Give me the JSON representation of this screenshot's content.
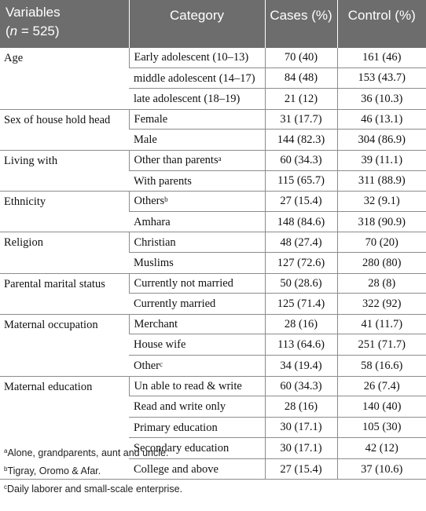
{
  "header": {
    "variables_label": "Variables",
    "n_prefix": "(",
    "n_italic": "n",
    "n_suffix": " = 525)",
    "category": "Category",
    "cases": "Cases (%)",
    "control": "Control (%)"
  },
  "groups": [
    {
      "variable": "Age",
      "rows": [
        {
          "category": "Early adolescent (10–13)",
          "sup": "",
          "cases": "70 (40)",
          "control": "161 (46)"
        },
        {
          "category": "middle adolescent (14–17)",
          "sup": "",
          "cases": "84 (48)",
          "control": "153 (43.7)"
        },
        {
          "category": "late adolescent (18–19)",
          "sup": "",
          "cases": "21 (12)",
          "control": "36 (10.3)"
        }
      ]
    },
    {
      "variable": "Sex of house hold head",
      "rows": [
        {
          "category": "Female",
          "sup": "",
          "cases": "31 (17.7)",
          "control": "46 (13.1)"
        },
        {
          "category": "Male",
          "sup": "",
          "cases": "144 (82.3)",
          "control": "304 (86.9)"
        }
      ]
    },
    {
      "variable": "Living with",
      "rows": [
        {
          "category": "Other than parents",
          "sup": "a",
          "cases": "60 (34.3)",
          "control": "39 (11.1)"
        },
        {
          "category": "With parents",
          "sup": "",
          "cases": "115 (65.7)",
          "control": "311 (88.9)"
        }
      ]
    },
    {
      "variable": "Ethnicity",
      "rows": [
        {
          "category": "Others",
          "sup": "b",
          "cases": "27 (15.4)",
          "control": "32 (9.1)"
        },
        {
          "category": "Amhara",
          "sup": "",
          "cases": "148 (84.6)",
          "control": "318 (90.9)"
        }
      ]
    },
    {
      "variable": "Religion",
      "rows": [
        {
          "category": "Christian",
          "sup": "",
          "cases": "48 (27.4)",
          "control": "70 (20)"
        },
        {
          "category": "Muslims",
          "sup": "",
          "cases": "127 (72.6)",
          "control": "280 (80)"
        }
      ]
    },
    {
      "variable": "Parental marital status",
      "rows": [
        {
          "category": "Currently not married",
          "sup": "",
          "cases": "50 (28.6)",
          "control": "28 (8)"
        },
        {
          "category": "Currently married",
          "sup": "",
          "cases": "125 (71.4)",
          "control": "322 (92)"
        }
      ]
    },
    {
      "variable": "Maternal occupation",
      "rows": [
        {
          "category": "Merchant",
          "sup": "",
          "cases": "28 (16)",
          "control": "41 (11.7)"
        },
        {
          "category": "House wife",
          "sup": "",
          "cases": "113 (64.6)",
          "control": "251 (71.7)"
        },
        {
          "category": "Other",
          "sup": "c",
          "cases": "34 (19.4)",
          "control": "58 (16.6)"
        }
      ]
    },
    {
      "variable": "Maternal education",
      "rows": [
        {
          "category": "Un able to read & write",
          "sup": "",
          "cases": "60 (34.3)",
          "control": "26 (7.4)"
        },
        {
          "category": "Read and write only",
          "sup": "",
          "cases": "28 (16)",
          "control": "140 (40)"
        },
        {
          "category": "Primary education",
          "sup": "",
          "cases": "30 (17.1)",
          "control": "105 (30)"
        },
        {
          "category": "Secondary education",
          "sup": "",
          "cases": "30 (17.1)",
          "control": "42 (12)"
        },
        {
          "category": "College and above",
          "sup": "",
          "cases": "27 (15.4)",
          "control": "37 (10.6)"
        }
      ]
    }
  ],
  "footnotes": [
    {
      "mark": "a",
      "text": "Alone, grandparents, aunt and uncle."
    },
    {
      "mark": "b",
      "text": "Tigray, Oromo & Afar."
    },
    {
      "mark": "c",
      "text": "Daily laborer and small-scale enterprise."
    }
  ]
}
